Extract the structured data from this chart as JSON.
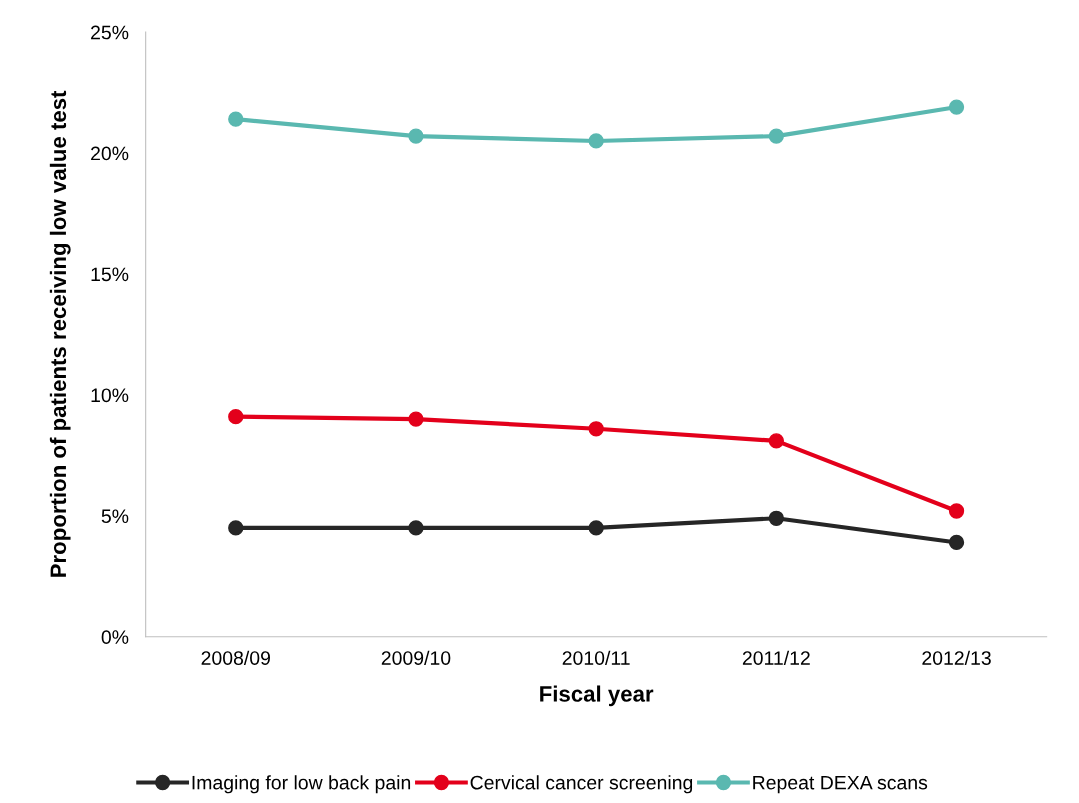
{
  "chart_data": {
    "type": "line",
    "xlabel": "Fiscal year",
    "ylabel": "Proportion of patients receiving low value test",
    "categories": [
      "2008/09",
      "2009/10",
      "2010/11",
      "2011/12",
      "2012/13"
    ],
    "series": [
      {
        "name": "Imaging for low back pain",
        "color": "#262626",
        "values": [
          4.5,
          4.5,
          4.5,
          4.9,
          3.9
        ]
      },
      {
        "name": "Cervical cancer screening",
        "color": "#e3001b",
        "values": [
          9.1,
          9.0,
          8.6,
          8.1,
          5.2
        ]
      },
      {
        "name": "Repeat DEXA scans",
        "color": "#5ab8b0",
        "values": [
          21.4,
          20.7,
          20.5,
          20.7,
          21.9
        ]
      }
    ],
    "ylim": [
      0,
      25
    ],
    "yticks": [
      {
        "value": 0,
        "label": "0%"
      },
      {
        "value": 5,
        "label": "5%"
      },
      {
        "value": 10,
        "label": "10%"
      },
      {
        "value": 15,
        "label": "15%"
      },
      {
        "value": 20,
        "label": "20%"
      },
      {
        "value": 25,
        "label": "25%"
      }
    ],
    "grid": false,
    "legend": "bottom",
    "marker": "circle",
    "line_style": "solid"
  }
}
